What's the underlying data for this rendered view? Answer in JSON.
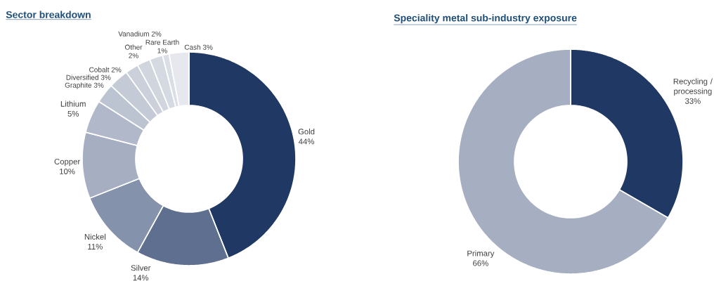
{
  "chart_data": [
    {
      "type": "donut",
      "title": "Sector breakdown",
      "categories": [
        "Gold",
        "Silver",
        "Nickel",
        "Copper",
        "Lithium",
        "Graphite",
        "Diversified",
        "Cobalt",
        "Other",
        "Vanadium",
        "Rare Earth",
        "Cash"
      ],
      "values": [
        44,
        14,
        11,
        10,
        5,
        3,
        3,
        2,
        2,
        2,
        1,
        3
      ],
      "value_labels": [
        "44%",
        "14%",
        "11%",
        "10%",
        "5%",
        "3%",
        "3%",
        "2%",
        "2%",
        "2%",
        "1%",
        "3%"
      ],
      "colors": [
        "#203864",
        "#5f6f8f",
        "#8592ab",
        "#a6aec1",
        "#b0b8c9",
        "#bcc3d1",
        "#c4cad6",
        "#cbd0da",
        "#d0d5de",
        "#d5dae2",
        "#dadee6",
        "#e6e8ee"
      ]
    },
    {
      "type": "donut",
      "title": "Speciality metal sub-industry exposure",
      "categories": [
        "Recycling / processing",
        "Primary"
      ],
      "values": [
        33,
        66
      ],
      "value_labels": [
        "33%",
        "66%"
      ],
      "colors": [
        "#203864",
        "#a6aec1"
      ]
    }
  ]
}
